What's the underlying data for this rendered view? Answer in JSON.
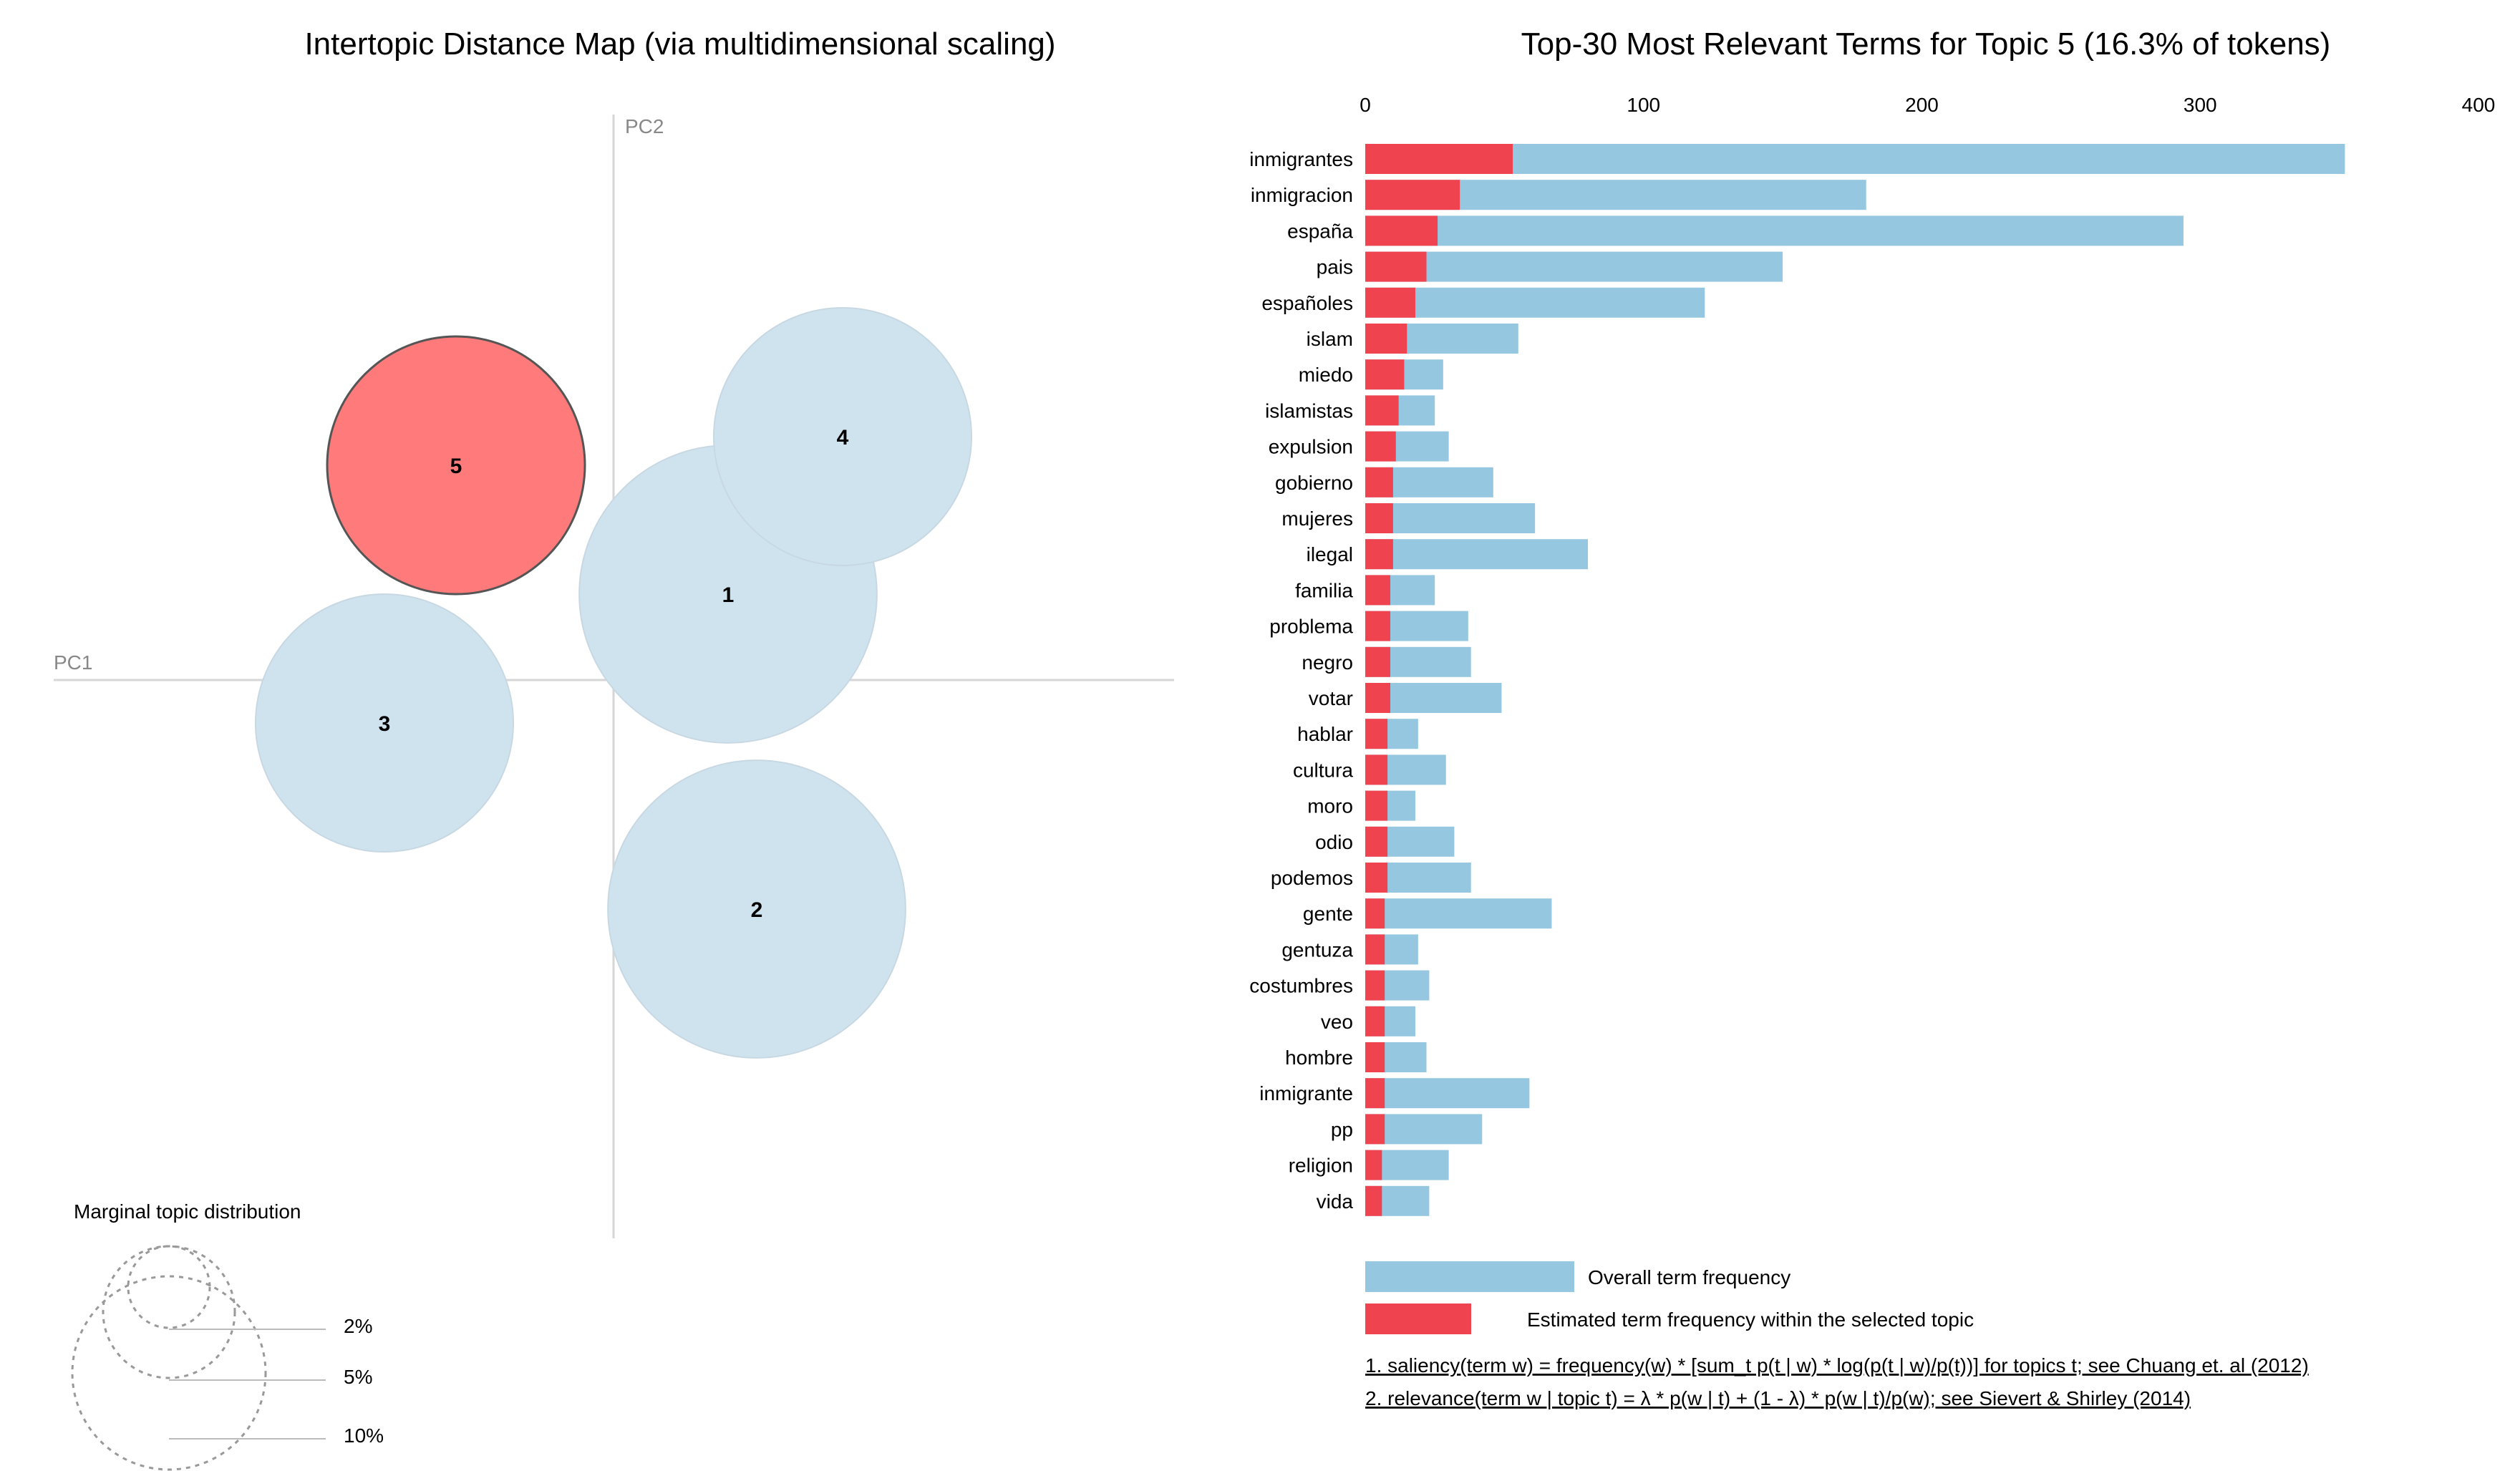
{
  "chart_data": [
    {
      "type": "scatter",
      "title": "Intertopic Distance Map (via multidimensional scaling)",
      "xlabel": "PC1",
      "ylabel": "PC2",
      "selected_topic": 5,
      "topics": [
        {
          "id": "1",
          "pc1": 0.08,
          "pc2": 0.06,
          "share_pct": 6.0
        },
        {
          "id": "2",
          "pc1": 0.1,
          "pc2": -0.16,
          "share_pct": 6.0
        },
        {
          "id": "3",
          "pc1": -0.16,
          "pc2": -0.03,
          "share_pct": 4.5
        },
        {
          "id": "4",
          "pc1": 0.16,
          "pc2": 0.17,
          "share_pct": 4.5
        },
        {
          "id": "5",
          "pc1": -0.11,
          "pc2": 0.15,
          "share_pct": 4.5
        }
      ],
      "colors": {
        "selected": "#ff7b7b",
        "default": "#cfe3ef",
        "selected_stroke": "#555555",
        "default_stroke": "#c8d8e2"
      }
    },
    {
      "type": "bar",
      "title": "Top-30 Most Relevant Terms for Topic 5 (16.3% of tokens)",
      "orientation": "horizontal",
      "xlim": [
        0,
        400
      ],
      "xticks": [
        0,
        100,
        200,
        300,
        400
      ],
      "categories": [
        "inmigrantes",
        "inmigracion",
        "españa",
        "pais",
        "españoles",
        "islam",
        "miedo",
        "islamistas",
        "expulsion",
        "gobierno",
        "mujeres",
        "ilegal",
        "familia",
        "problema",
        "negro",
        "votar",
        "hablar",
        "cultura",
        "moro",
        "odio",
        "podemos",
        "gente",
        "gentuza",
        "costumbres",
        "veo",
        "hombre",
        "inmigrante",
        "pp",
        "religion",
        "vida"
      ],
      "series": [
        {
          "name": "Overall term frequency",
          "color": "#95c8e0",
          "values": [
            352,
            180,
            294,
            150,
            122,
            55,
            28,
            25,
            30,
            46,
            61,
            80,
            25,
            37,
            38,
            49,
            19,
            29,
            18,
            32,
            38,
            67,
            19,
            23,
            18,
            22,
            59,
            42,
            30,
            23
          ]
        },
        {
          "name": "Estimated term frequency within the selected topic",
          "color": "#ef4450",
          "values": [
            53,
            34,
            26,
            22,
            18,
            15,
            14,
            12,
            11,
            10,
            10,
            10,
            9,
            9,
            9,
            9,
            8,
            8,
            8,
            8,
            8,
            7,
            7,
            7,
            7,
            7,
            7,
            7,
            6,
            6
          ]
        }
      ]
    }
  ],
  "marginal": {
    "title": "Marginal topic distribution",
    "labels": [
      "2%",
      "5%",
      "10%"
    ]
  },
  "legend": {
    "overall": "Overall term frequency",
    "estimated": "Estimated term frequency within the selected topic"
  },
  "notes": [
    "1. saliency(term w) = frequency(w) * [sum_t p(t | w) * log(p(t | w)/p(t))] for topics t; see Chuang et. al (2012)",
    "2. relevance(term w | topic t) = λ * p(w | t) + (1 - λ) * p(w | t)/p(w); see Sievert & Shirley (2014)"
  ]
}
